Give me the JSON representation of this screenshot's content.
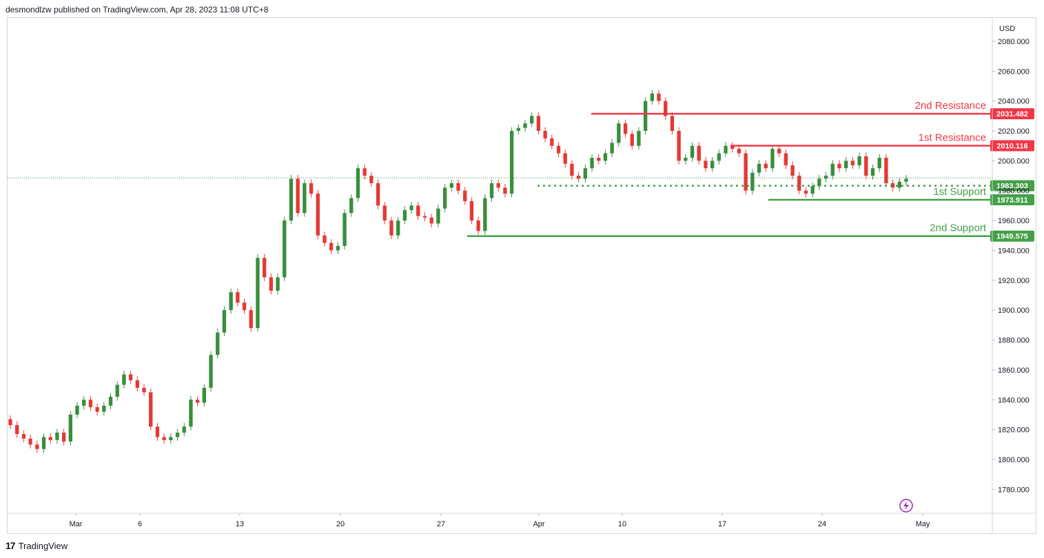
{
  "header": {
    "published": "desmondlzw published on TradingView.com, Apr 28, 2023 11:08 UTC+8"
  },
  "footer": {
    "brand": "TradingView"
  },
  "colors": {
    "up": "#388e3c",
    "down": "#e53935",
    "resistance": "#f23645",
    "support": "#43a047",
    "grid": "#f0f3fa"
  },
  "chart_data": {
    "type": "candlestick",
    "currency": "USD",
    "y_ticks": [
      "2080.000",
      "2060.000",
      "2040.000",
      "2020.000",
      "2000.000",
      "1980.000",
      "1960.000",
      "1940.000",
      "1920.000",
      "1900.000",
      "1880.000",
      "1860.000",
      "1840.000",
      "1820.000",
      "1800.000",
      "1780.000"
    ],
    "x_ticks": [
      "Mar",
      "6",
      "13",
      "20",
      "27",
      "Apr",
      "10",
      "17",
      "24",
      "May"
    ],
    "levels": [
      {
        "name": "2nd Resistance",
        "value": "2031.482",
        "kind": "resistance"
      },
      {
        "name": "1st Resistance",
        "value": "2010.116",
        "kind": "resistance"
      },
      {
        "name": "1st Support",
        "value": "1973.911",
        "kind": "support"
      },
      {
        "name": "2nd Support",
        "value": "1949.575",
        "kind": "support"
      }
    ],
    "pivot": {
      "value": "1983.303"
    },
    "last_price": 1988.6,
    "series": [
      {
        "o": 1827,
        "c": 1823
      },
      {
        "o": 1823,
        "c": 1817
      },
      {
        "o": 1817,
        "c": 1814
      },
      {
        "o": 1814,
        "c": 1810
      },
      {
        "o": 1810,
        "c": 1807
      },
      {
        "o": 1807,
        "c": 1815
      },
      {
        "o": 1815,
        "c": 1813
      },
      {
        "o": 1813,
        "c": 1818
      },
      {
        "o": 1818,
        "c": 1812
      },
      {
        "o": 1812,
        "c": 1830
      },
      {
        "o": 1830,
        "c": 1836
      },
      {
        "o": 1836,
        "c": 1840
      },
      {
        "o": 1840,
        "c": 1835
      },
      {
        "o": 1835,
        "c": 1832
      },
      {
        "o": 1832,
        "c": 1836
      },
      {
        "o": 1836,
        "c": 1842
      },
      {
        "o": 1842,
        "c": 1850
      },
      {
        "o": 1850,
        "c": 1857
      },
      {
        "o": 1857,
        "c": 1853
      },
      {
        "o": 1853,
        "c": 1848
      },
      {
        "o": 1848,
        "c": 1845
      },
      {
        "o": 1845,
        "c": 1822
      },
      {
        "o": 1822,
        "c": 1815
      },
      {
        "o": 1815,
        "c": 1813
      },
      {
        "o": 1813,
        "c": 1815
      },
      {
        "o": 1815,
        "c": 1818
      },
      {
        "o": 1818,
        "c": 1822
      },
      {
        "o": 1822,
        "c": 1840
      },
      {
        "o": 1840,
        "c": 1838
      },
      {
        "o": 1838,
        "c": 1848
      },
      {
        "o": 1848,
        "c": 1870
      },
      {
        "o": 1870,
        "c": 1885
      },
      {
        "o": 1885,
        "c": 1900
      },
      {
        "o": 1900,
        "c": 1912
      },
      {
        "o": 1912,
        "c": 1905
      },
      {
        "o": 1905,
        "c": 1900
      },
      {
        "o": 1900,
        "c": 1888
      },
      {
        "o": 1888,
        "c": 1935
      },
      {
        "o": 1935,
        "c": 1922
      },
      {
        "o": 1922,
        "c": 1913
      },
      {
        "o": 1913,
        "c": 1922
      },
      {
        "o": 1922,
        "c": 1960
      },
      {
        "o": 1960,
        "c": 1988
      },
      {
        "o": 1988,
        "c": 1965
      },
      {
        "o": 1965,
        "c": 1985
      },
      {
        "o": 1985,
        "c": 1978
      },
      {
        "o": 1978,
        "c": 1950
      },
      {
        "o": 1950,
        "c": 1945
      },
      {
        "o": 1945,
        "c": 1940
      },
      {
        "o": 1940,
        "c": 1943
      },
      {
        "o": 1943,
        "c": 1965
      },
      {
        "o": 1965,
        "c": 1975
      },
      {
        "o": 1975,
        "c": 1995
      },
      {
        "o": 1995,
        "c": 1990
      },
      {
        "o": 1990,
        "c": 1985
      },
      {
        "o": 1985,
        "c": 1970
      },
      {
        "o": 1970,
        "c": 1960
      },
      {
        "o": 1960,
        "c": 1950
      },
      {
        "o": 1950,
        "c": 1960
      },
      {
        "o": 1960,
        "c": 1967
      },
      {
        "o": 1967,
        "c": 1970
      },
      {
        "o": 1970,
        "c": 1963
      },
      {
        "o": 1963,
        "c": 1962
      },
      {
        "o": 1962,
        "c": 1958
      },
      {
        "o": 1958,
        "c": 1968
      },
      {
        "o": 1968,
        "c": 1982
      },
      {
        "o": 1982,
        "c": 1985
      },
      {
        "o": 1985,
        "c": 1980
      },
      {
        "o": 1980,
        "c": 1973
      },
      {
        "o": 1973,
        "c": 1960
      },
      {
        "o": 1960,
        "c": 1953
      },
      {
        "o": 1953,
        "c": 1975
      },
      {
        "o": 1975,
        "c": 1985
      },
      {
        "o": 1985,
        "c": 1982
      },
      {
        "o": 1982,
        "c": 1978
      },
      {
        "o": 1978,
        "c": 2020
      },
      {
        "o": 2020,
        "c": 2022
      },
      {
        "o": 2022,
        "c": 2025
      },
      {
        "o": 2025,
        "c": 2030
      },
      {
        "o": 2030,
        "c": 2020
      },
      {
        "o": 2020,
        "c": 2015
      },
      {
        "o": 2015,
        "c": 2010
      },
      {
        "o": 2010,
        "c": 2005
      },
      {
        "o": 2005,
        "c": 1998
      },
      {
        "o": 1998,
        "c": 1990
      },
      {
        "o": 1990,
        "c": 1988
      },
      {
        "o": 1988,
        "c": 1995
      },
      {
        "o": 1995,
        "c": 2002
      },
      {
        "o": 2002,
        "c": 2000
      },
      {
        "o": 2000,
        "c": 2005
      },
      {
        "o": 2005,
        "c": 2012
      },
      {
        "o": 2012,
        "c": 2025
      },
      {
        "o": 2025,
        "c": 2018
      },
      {
        "o": 2018,
        "c": 2010
      },
      {
        "o": 2010,
        "c": 2020
      },
      {
        "o": 2020,
        "c": 2040
      },
      {
        "o": 2040,
        "c": 2045
      },
      {
        "o": 2045,
        "c": 2040
      },
      {
        "o": 2040,
        "c": 2030
      },
      {
        "o": 2030,
        "c": 2020
      },
      {
        "o": 2020,
        "c": 2000
      },
      {
        "o": 2000,
        "c": 2002
      },
      {
        "o": 2002,
        "c": 2010
      },
      {
        "o": 2010,
        "c": 2000
      },
      {
        "o": 2000,
        "c": 1995
      },
      {
        "o": 1995,
        "c": 2000
      },
      {
        "o": 2000,
        "c": 2005
      },
      {
        "o": 2005,
        "c": 2010
      },
      {
        "o": 2010,
        "c": 2008
      },
      {
        "o": 2008,
        "c": 2005
      },
      {
        "o": 2005,
        "c": 1980
      },
      {
        "o": 1980,
        "c": 1992
      },
      {
        "o": 1992,
        "c": 1998
      },
      {
        "o": 1998,
        "c": 1995
      },
      {
        "o": 1995,
        "c": 2008
      },
      {
        "o": 2008,
        "c": 2005
      },
      {
        "o": 2005,
        "c": 1997
      },
      {
        "o": 1997,
        "c": 1990
      },
      {
        "o": 1990,
        "c": 1980
      },
      {
        "o": 1980,
        "c": 1978
      },
      {
        "o": 1978,
        "c": 1983
      },
      {
        "o": 1983,
        "c": 1988
      },
      {
        "o": 1988,
        "c": 1990
      },
      {
        "o": 1990,
        "c": 1998
      },
      {
        "o": 1998,
        "c": 1995
      },
      {
        "o": 1995,
        "c": 2000
      },
      {
        "o": 2000,
        "c": 1997
      },
      {
        "o": 1997,
        "c": 2003
      },
      {
        "o": 2003,
        "c": 1990
      },
      {
        "o": 1990,
        "c": 1995
      },
      {
        "o": 1995,
        "c": 2002
      },
      {
        "o": 2002,
        "c": 1985
      },
      {
        "o": 1985,
        "c": 1982
      },
      {
        "o": 1982,
        "c": 1986
      },
      {
        "o": 1986,
        "c": 1988
      }
    ]
  }
}
